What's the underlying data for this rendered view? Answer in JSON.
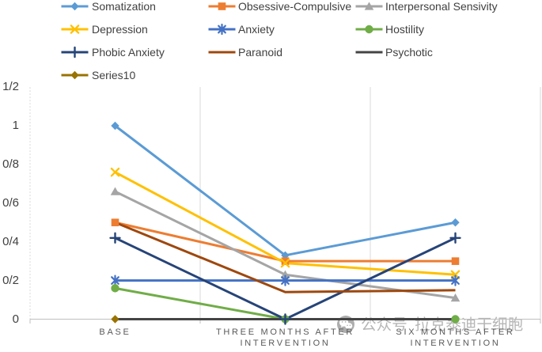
{
  "chart_data": {
    "type": "line",
    "title": "",
    "xlabel": "",
    "ylabel": "",
    "categories": [
      "BASE",
      "THREE MONTHS AFTER INTERVENTION",
      "SIX MONTHS AFTER INTERVENTION"
    ],
    "x_tick_lines": [
      [
        "BASE"
      ],
      [
        "THREE MONTHS AFTER",
        "INTERVENTION"
      ],
      [
        "SIX MONTHS AFTER",
        "INTERVENTION"
      ]
    ],
    "y_ticks": [
      {
        "label": "0",
        "value": 0
      },
      {
        "label": "0/2",
        "value": 0.2
      },
      {
        "label": "0/4",
        "value": 0.4
      },
      {
        "label": "0/6",
        "value": 0.6
      },
      {
        "label": "0/8",
        "value": 0.8
      },
      {
        "label": "1",
        "value": 1
      },
      {
        "label": "1/2",
        "value": 1.2
      }
    ],
    "ylim": [
      0,
      1.2
    ],
    "grid": "vertical-category-boundaries",
    "legend_position": "top",
    "series": [
      {
        "name": "Somatization",
        "color": "#5B9BD5",
        "marker": "diamond",
        "values": [
          1,
          0.33,
          0.5
        ]
      },
      {
        "name": "Obsessive-Compulsive",
        "color": "#ED7D31",
        "marker": "square",
        "values": [
          0.5,
          0.3,
          0.3
        ]
      },
      {
        "name": "Interpersonal Sensivity",
        "color": "#A5A5A5",
        "marker": "triangle",
        "values": [
          0.66,
          0.23,
          0.11
        ]
      },
      {
        "name": "Depression",
        "color": "#FFC000",
        "marker": "x",
        "values": [
          0.76,
          0.29,
          0.23
        ]
      },
      {
        "name": "Anxiety",
        "color": "#4472C4",
        "marker": "asterisk",
        "values": [
          0.2,
          0.2,
          0.2
        ]
      },
      {
        "name": "Hostility",
        "color": "#70AD47",
        "marker": "circle",
        "values": [
          0.16,
          0,
          0
        ]
      },
      {
        "name": "Phobic Anxiety",
        "color": "#264478",
        "marker": "plus",
        "values": [
          0.42,
          0,
          0.42
        ]
      },
      {
        "name": "Paranoid",
        "color": "#9E480E",
        "marker": "none",
        "values": [
          0.5,
          0.14,
          0.15
        ]
      },
      {
        "name": "Psychotic",
        "color": "#444444",
        "marker": "none",
        "values": [
          0,
          0,
          0
        ]
      },
      {
        "name": "Series10",
        "color": "#997300",
        "marker": "diamond",
        "values": [
          0,
          null,
          null
        ]
      }
    ]
  },
  "watermark": {
    "icon": "wechat-icon",
    "platform": "公众号",
    "account": "拉克泰迪干细胞"
  },
  "colors": {
    "axis_line": "#bfbfbf",
    "gridline": "#d9d9d9",
    "legend_text": "#404040",
    "tick_text": "#595959",
    "watermark": "#b3b3b3"
  }
}
